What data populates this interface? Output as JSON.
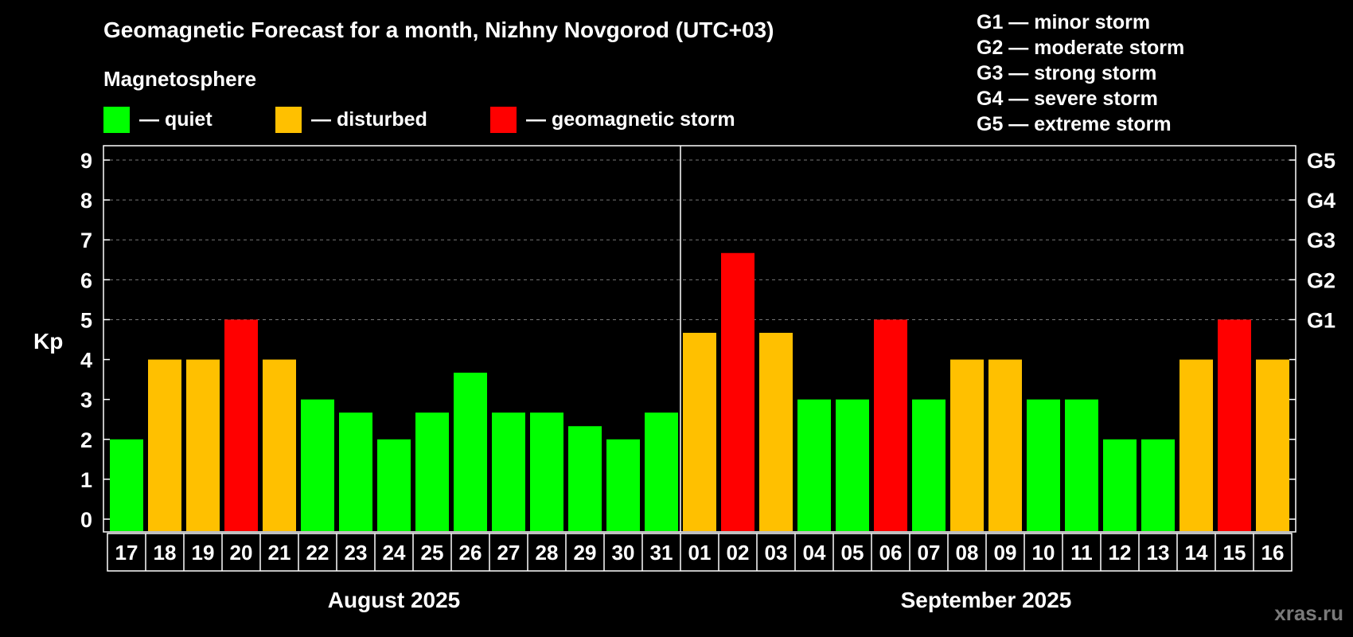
{
  "title": "Geomagnetic Forecast for a month, Nizhny Novgorod (UTC+03)",
  "legend": {
    "heading": "Magnetosphere",
    "items": [
      {
        "label": "— quiet",
        "color": "#00ff00"
      },
      {
        "label": "— disturbed",
        "color": "#ffc000"
      },
      {
        "label": "— geomagnetic storm",
        "color": "#ff0000"
      }
    ]
  },
  "storm_levels": [
    "G1 — minor storm",
    "G2 — moderate storm",
    "G3 — strong storm",
    "G4 — severe storm",
    "G5 — extreme storm"
  ],
  "watermark": "xras.ru",
  "chart_data": {
    "type": "bar",
    "ylabel": "Kp",
    "ylim": [
      0,
      9
    ],
    "yticks": [
      "0",
      "1",
      "2",
      "3",
      "4",
      "5",
      "6",
      "7",
      "8",
      "9"
    ],
    "right_axis_labels": [
      {
        "kp": 5,
        "label": "G1"
      },
      {
        "kp": 6,
        "label": "G2"
      },
      {
        "kp": 7,
        "label": "G3"
      },
      {
        "kp": 8,
        "label": "G4"
      },
      {
        "kp": 9,
        "label": "G5"
      }
    ],
    "categories": [
      "17",
      "18",
      "19",
      "20",
      "21",
      "22",
      "23",
      "24",
      "25",
      "26",
      "27",
      "28",
      "29",
      "30",
      "31",
      "01",
      "02",
      "03",
      "04",
      "05",
      "06",
      "07",
      "08",
      "09",
      "10",
      "11",
      "12",
      "13",
      "14",
      "15",
      "16"
    ],
    "values": [
      2,
      4,
      4,
      5,
      4,
      3,
      2.67,
      2,
      2.67,
      3.67,
      2.67,
      2.67,
      2.33,
      2,
      2.67,
      4.67,
      6.67,
      4.67,
      3,
      3,
      5,
      3,
      4,
      4,
      3,
      3,
      2,
      2,
      4,
      5,
      4
    ],
    "colors": {
      "quiet": "#00ff00",
      "disturbed": "#ffc000",
      "storm": "#ff0000"
    },
    "bar_states": [
      "quiet",
      "disturbed",
      "disturbed",
      "storm",
      "disturbed",
      "quiet",
      "quiet",
      "quiet",
      "quiet",
      "quiet",
      "quiet",
      "quiet",
      "quiet",
      "quiet",
      "quiet",
      "disturbed",
      "storm",
      "disturbed",
      "quiet",
      "quiet",
      "storm",
      "quiet",
      "disturbed",
      "disturbed",
      "quiet",
      "quiet",
      "quiet",
      "quiet",
      "disturbed",
      "storm",
      "disturbed"
    ],
    "months": [
      {
        "label": "August 2025",
        "start": 0,
        "count": 15
      },
      {
        "label": "September 2025",
        "start": 15,
        "count": 16
      }
    ]
  }
}
